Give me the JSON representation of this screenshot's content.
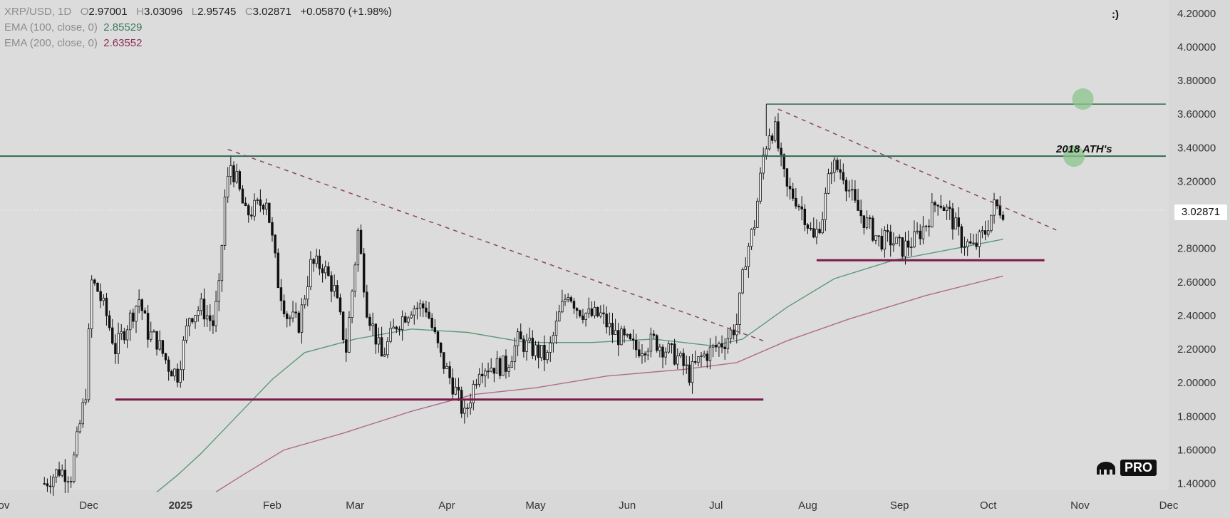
{
  "legend": {
    "symbol": "XRP/USD, 1D",
    "open_key": "O",
    "open": "2.97001",
    "high_key": "H",
    "high": "3.03096",
    "low_key": "L",
    "low": "2.95745",
    "close_key": "C",
    "close": "3.02871",
    "change": "+0.05870 (+1.98%)",
    "ema100_label": "EMA (100, close, 0)",
    "ema100_value": "2.85529",
    "ema200_label": "EMA (200, close, 0)",
    "ema200_value": "2.63552"
  },
  "corner_text": ":)",
  "price_badge": "3.02871",
  "logo_text": "PRO",
  "colors": {
    "background": "#dcdcdc",
    "candle": "#111111",
    "ema100": "#5a9a78",
    "ema200": "#b06a8c",
    "support": "#7a1b4a",
    "resistance": "#2e6b4e",
    "trendline": "#8a4560",
    "target_circle": "#8cc48c"
  },
  "chart_data": {
    "type": "candlestick",
    "title": "",
    "xlabel": "",
    "ylabel": "",
    "ylim": [
      1.36,
      4.28
    ],
    "y_ticks": [
      "4.20000",
      "4.00000",
      "3.80000",
      "3.60000",
      "3.40000",
      "3.20000",
      "2.80000",
      "2.60000",
      "2.40000",
      "2.20000",
      "2.00000",
      "1.80000",
      "1.60000",
      "1.40000"
    ],
    "x_range": [
      "2024-11-01",
      "2025-12-01"
    ],
    "x_ticks": [
      {
        "date": "2024-11-01",
        "label": "Nov"
      },
      {
        "date": "2024-12-01",
        "label": "Dec"
      },
      {
        "date": "2025-01-01",
        "label": "2025",
        "bold": true
      },
      {
        "date": "2025-02-01",
        "label": "Feb"
      },
      {
        "date": "2025-03-01",
        "label": "Mar"
      },
      {
        "date": "2025-04-01",
        "label": "Apr"
      },
      {
        "date": "2025-05-01",
        "label": "May"
      },
      {
        "date": "2025-06-01",
        "label": "Jun"
      },
      {
        "date": "2025-07-01",
        "label": "Jul"
      },
      {
        "date": "2025-08-01",
        "label": "Aug"
      },
      {
        "date": "2025-09-01",
        "label": "Sep"
      },
      {
        "date": "2025-10-01",
        "label": "Oct"
      },
      {
        "date": "2025-11-01",
        "label": "Nov"
      },
      {
        "date": "2025-12-01",
        "label": "Dec"
      }
    ],
    "price_path": [
      [
        "2024-11-16",
        1.4
      ],
      [
        "2024-11-21",
        1.48
      ],
      [
        "2024-11-25",
        1.45
      ],
      [
        "2024-11-30",
        1.95
      ],
      [
        "2024-12-02",
        2.6
      ],
      [
        "2024-12-04",
        2.55
      ],
      [
        "2024-12-07",
        2.4
      ],
      [
        "2024-12-10",
        2.2
      ],
      [
        "2024-12-14",
        2.35
      ],
      [
        "2024-12-18",
        2.5
      ],
      [
        "2024-12-21",
        2.3
      ],
      [
        "2024-12-24",
        2.25
      ],
      [
        "2024-12-28",
        2.1
      ],
      [
        "2024-12-31",
        2.05
      ],
      [
        "2025-01-04",
        2.4
      ],
      [
        "2025-01-08",
        2.45
      ],
      [
        "2025-01-12",
        2.35
      ],
      [
        "2025-01-14",
        2.55
      ],
      [
        "2025-01-16",
        3.1
      ],
      [
        "2025-01-18",
        3.3
      ],
      [
        "2025-01-20",
        3.2
      ],
      [
        "2025-01-23",
        3.0
      ],
      [
        "2025-01-27",
        3.05
      ],
      [
        "2025-01-30",
        3.1
      ],
      [
        "2025-02-03",
        2.6
      ],
      [
        "2025-02-06",
        2.4
      ],
      [
        "2025-02-10",
        2.35
      ],
      [
        "2025-02-14",
        2.7
      ],
      [
        "2025-02-18",
        2.7
      ],
      [
        "2025-02-22",
        2.55
      ],
      [
        "2025-02-26",
        2.2
      ],
      [
        "2025-03-02",
        2.9
      ],
      [
        "2025-03-05",
        2.45
      ],
      [
        "2025-03-10",
        2.15
      ],
      [
        "2025-03-15",
        2.35
      ],
      [
        "2025-03-20",
        2.45
      ],
      [
        "2025-03-25",
        2.45
      ],
      [
        "2025-03-30",
        2.15
      ],
      [
        "2025-04-04",
        1.95
      ],
      [
        "2025-04-07",
        1.8
      ],
      [
        "2025-04-12",
        2.1
      ],
      [
        "2025-04-16",
        2.1
      ],
      [
        "2025-04-21",
        2.1
      ],
      [
        "2025-04-25",
        2.25
      ],
      [
        "2025-04-30",
        2.2
      ],
      [
        "2025-05-05",
        2.15
      ],
      [
        "2025-05-09",
        2.4
      ],
      [
        "2025-05-12",
        2.55
      ],
      [
        "2025-05-15",
        2.45
      ],
      [
        "2025-05-19",
        2.4
      ],
      [
        "2025-05-23",
        2.4
      ],
      [
        "2025-05-27",
        2.3
      ],
      [
        "2025-05-31",
        2.25
      ],
      [
        "2025-06-04",
        2.2
      ],
      [
        "2025-06-10",
        2.25
      ],
      [
        "2025-06-14",
        2.2
      ],
      [
        "2025-06-18",
        2.15
      ],
      [
        "2025-06-22",
        2.05
      ],
      [
        "2025-06-26",
        2.15
      ],
      [
        "2025-06-30",
        2.2
      ],
      [
        "2025-07-04",
        2.25
      ],
      [
        "2025-07-08",
        2.35
      ],
      [
        "2025-07-11",
        2.75
      ],
      [
        "2025-07-14",
        2.95
      ],
      [
        "2025-07-17",
        3.35
      ],
      [
        "2025-07-19",
        3.5
      ],
      [
        "2025-07-21",
        3.5
      ],
      [
        "2025-07-23",
        3.3
      ],
      [
        "2025-07-25",
        3.15
      ],
      [
        "2025-07-28",
        3.1
      ],
      [
        "2025-07-31",
        3.0
      ],
      [
        "2025-08-03",
        2.85
      ],
      [
        "2025-08-06",
        3.0
      ],
      [
        "2025-08-09",
        3.3
      ],
      [
        "2025-08-13",
        3.25
      ],
      [
        "2025-08-17",
        3.05
      ],
      [
        "2025-08-21",
        2.95
      ],
      [
        "2025-08-25",
        2.85
      ],
      [
        "2025-08-29",
        2.85
      ],
      [
        "2025-09-02",
        2.8
      ],
      [
        "2025-09-06",
        2.85
      ],
      [
        "2025-09-10",
        2.95
      ],
      [
        "2025-09-14",
        3.1
      ],
      [
        "2025-09-18",
        3.0
      ],
      [
        "2025-09-22",
        2.85
      ],
      [
        "2025-09-26",
        2.8
      ],
      [
        "2025-09-30",
        2.9
      ],
      [
        "2025-10-03",
        3.05
      ],
      [
        "2025-10-06",
        3.03
      ]
    ],
    "ema100_path": [
      [
        "2024-12-24",
        1.35
      ],
      [
        "2024-12-31",
        1.45
      ],
      [
        "2025-01-08",
        1.58
      ],
      [
        "2025-01-20",
        1.8
      ],
      [
        "2025-02-01",
        2.02
      ],
      [
        "2025-02-12",
        2.18
      ],
      [
        "2025-03-01",
        2.26
      ],
      [
        "2025-03-20",
        2.32
      ],
      [
        "2025-04-08",
        2.3
      ],
      [
        "2025-04-28",
        2.24
      ],
      [
        "2025-05-20",
        2.24
      ],
      [
        "2025-06-10",
        2.26
      ],
      [
        "2025-06-30",
        2.22
      ],
      [
        "2025-07-10",
        2.26
      ],
      [
        "2025-07-25",
        2.45
      ],
      [
        "2025-08-10",
        2.62
      ],
      [
        "2025-08-30",
        2.73
      ],
      [
        "2025-09-20",
        2.8
      ],
      [
        "2025-10-06",
        2.855
      ]
    ],
    "ema200_path": [
      [
        "2025-01-13",
        1.35
      ],
      [
        "2025-01-22",
        1.45
      ],
      [
        "2025-02-05",
        1.6
      ],
      [
        "2025-02-25",
        1.7
      ],
      [
        "2025-03-20",
        1.83
      ],
      [
        "2025-04-10",
        1.93
      ],
      [
        "2025-05-01",
        1.97
      ],
      [
        "2025-05-25",
        2.04
      ],
      [
        "2025-06-20",
        2.08
      ],
      [
        "2025-07-08",
        2.12
      ],
      [
        "2025-07-25",
        2.25
      ],
      [
        "2025-08-15",
        2.38
      ],
      [
        "2025-09-10",
        2.52
      ],
      [
        "2025-10-06",
        2.636
      ]
    ],
    "annotations": {
      "resistance_ath": {
        "y": 3.35,
        "x_from": "2024-11-01",
        "x_to": "2025-11-30",
        "label": "2018 ATH's"
      },
      "resistance_high": {
        "y": 3.66,
        "x_from": "2025-07-18",
        "x_to": "2025-11-30",
        "vertical_to": 3.47
      },
      "support_lower": {
        "y": 1.9,
        "x_from": "2024-12-10",
        "x_to": "2025-07-17"
      },
      "support_upper": {
        "y": 2.73,
        "x_from": "2025-08-04",
        "x_to": "2025-10-20"
      },
      "trendline_1": [
        [
          "2025-01-17",
          3.39
        ],
        [
          "2025-07-17",
          2.25
        ]
      ],
      "trendline_2": [
        [
          "2025-07-22",
          3.63
        ],
        [
          "2025-10-24",
          2.91
        ]
      ],
      "target_circles": [
        {
          "x": "2025-11-02",
          "y": 3.69
        },
        {
          "x": "2025-10-30",
          "y": 3.35
        }
      ],
      "current_price_line": 3.029
    }
  }
}
